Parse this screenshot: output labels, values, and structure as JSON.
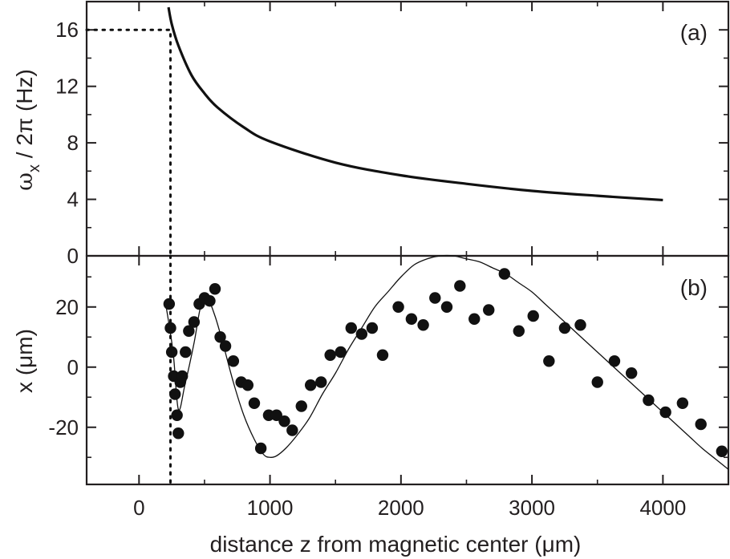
{
  "chart_data": [
    {
      "panel": "(a)",
      "type": "line",
      "ylabel": {
        "omega": "ω",
        "sub": "x",
        "rest": " / 2π (Hz)"
      },
      "xlim": [
        -400,
        4500
      ],
      "ylim": [
        0,
        18
      ],
      "y_ticks": [
        0,
        4,
        8,
        12,
        16
      ],
      "x_ticks": [
        0,
        1000,
        2000,
        3000,
        4000
      ],
      "grid": false,
      "legend": "none",
      "curve": {
        "x": [
          225,
          250,
          300,
          400,
          500,
          600,
          800,
          1000,
          1500,
          2000,
          2500,
          3000,
          3500,
          4000
        ],
        "y": [
          17.6,
          16.4,
          14.9,
          12.8,
          11.5,
          10.5,
          9.1,
          8.1,
          6.6,
          5.7,
          5.1,
          4.6,
          4.25,
          3.95
        ]
      },
      "marker": {
        "x": 240,
        "y": 16
      },
      "colors": {
        "curve": "#111111",
        "axes": "#231f20"
      }
    },
    {
      "panel": "(b)",
      "type": "scatter",
      "ylabel": "x (μm)",
      "xlabel": "distance z from magnetic center (μm)",
      "xlim": [
        -400,
        4500
      ],
      "ylim": [
        -39,
        37
      ],
      "y_ticks": [
        -20,
        0,
        20
      ],
      "x_ticks": [
        0,
        1000,
        2000,
        3000,
        4000
      ],
      "x_tick_labels": [
        "0",
        "1000",
        "2000",
        "3000",
        "4000"
      ],
      "grid": false,
      "legend": "none",
      "points": {
        "x": [
          230,
          240,
          250,
          265,
          275,
          290,
          300,
          315,
          330,
          355,
          380,
          420,
          460,
          500,
          540,
          580,
          620,
          660,
          720,
          780,
          830,
          880,
          930,
          990,
          1050,
          1110,
          1170,
          1240,
          1310,
          1390,
          1460,
          1540,
          1620,
          1700,
          1780,
          1860,
          1980,
          2080,
          2170,
          2260,
          2350,
          2450,
          2560,
          2670,
          2790,
          2900,
          3010,
          3130,
          3250,
          3370,
          3500,
          3630,
          3760,
          3890,
          4020,
          4150,
          4290,
          4450
        ],
        "y": [
          21,
          13,
          5,
          -3,
          -9,
          -16,
          -22,
          -5,
          -3,
          5,
          12,
          15,
          21,
          23,
          22,
          26,
          10,
          7,
          2,
          -5,
          -6,
          -12,
          -27,
          -16,
          -16,
          -18,
          -21,
          -13,
          -6,
          -5,
          4,
          5,
          13,
          11,
          13,
          4,
          20,
          16,
          14,
          23,
          20,
          27,
          16,
          19,
          31,
          12,
          17,
          2,
          13,
          14,
          -5,
          2,
          -2,
          -11,
          -15,
          -12,
          -19,
          -28
        ]
      },
      "fit_curve": {
        "x": [
          200,
          260,
          300,
          350,
          420,
          470,
          520,
          580,
          640,
          720,
          800,
          880,
          950,
          1000,
          1050,
          1120,
          1200,
          1300,
          1400,
          1500,
          1600,
          1700,
          1800,
          1900,
          2000,
          2100,
          2200,
          2300,
          2400,
          2500,
          2600,
          2700,
          2800,
          2900,
          3000,
          3100,
          3200,
          3300,
          3400,
          3500,
          3600,
          3700,
          3800,
          3900,
          4000,
          4100,
          4200,
          4300,
          4400,
          4500
        ],
        "y": [
          22,
          5,
          -14,
          -6,
          8,
          20,
          23,
          17,
          8,
          -5,
          -16,
          -24,
          -29,
          -30,
          -29.5,
          -27,
          -23,
          -17,
          -9,
          -2,
          6,
          13,
          20,
          25,
          30,
          34,
          36,
          37,
          37,
          36,
          35,
          33,
          31,
          28,
          25,
          21,
          17,
          13,
          9,
          5,
          1,
          -3,
          -7,
          -11,
          -15,
          -19,
          -23,
          -27,
          -30.5,
          -34
        ]
      },
      "marker_x": 240,
      "colors": {
        "points": "#111111",
        "fit": "#111111",
        "axes": "#231f20"
      }
    }
  ]
}
